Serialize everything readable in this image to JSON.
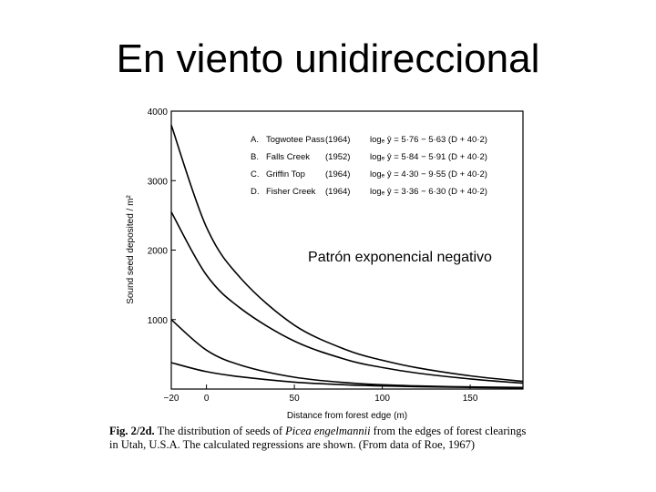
{
  "slide": {
    "title": "En viento unidireccional",
    "callout": "Patrón exponencial negativo"
  },
  "caption": {
    "figure_label": "Fig. 2/2d.",
    "text_before": " The distribution of seeds of ",
    "species": "Picea engelmannii",
    "text_after": " from the edges of forest clearings in Utah, U.S.A. The calculated regressions are shown. (From data of Roe, 1967)"
  },
  "chart_data": {
    "type": "line",
    "xlabel": "Distance from forest edge  (m)",
    "ylabel": "Sound seed deposited / m²",
    "xlim": [
      -20,
      180
    ],
    "ylim": [
      0,
      4000
    ],
    "x_ticks": [
      -20,
      0,
      50,
      100,
      150
    ],
    "x_tick_labels": [
      "−20",
      "0",
      "50",
      "100",
      "150"
    ],
    "y_ticks": [
      1000,
      2000,
      3000,
      4000
    ],
    "y_tick_labels": [
      "1000",
      "2000",
      "3000",
      "4000"
    ],
    "grid": false,
    "legend_position": "top-right",
    "series": [
      {
        "letter": "A.",
        "name": "Togwotee Pass",
        "year": "(1964)",
        "equation": "logₑ ŷ = 5·76 − 5·63 (D + 40·2)",
        "a": 5.76,
        "b": 5.63
      },
      {
        "letter": "B.",
        "name": "Falls Creek",
        "year": "(1952)",
        "equation": "logₑ ŷ = 5·84 − 5·91 (D + 40·2)",
        "a": 5.84,
        "b": 5.91
      },
      {
        "letter": "C.",
        "name": "Griffin Top",
        "year": "(1964)",
        "equation": "logₑ ŷ = 4·30 − 9·55 (D + 40·2)",
        "a": 4.3,
        "b": 9.55
      },
      {
        "letter": "D.",
        "name": "Fisher Creek",
        "year": "(1964)",
        "equation": "logₑ ŷ = 3·36 − 6·30 (D + 40·2)",
        "a": 3.36,
        "b": 6.3
      }
    ],
    "curve_values": {
      "x": [
        -20,
        0,
        20,
        50,
        80,
        100,
        120,
        150,
        180
      ],
      "A": [
        3800,
        2330,
        1580,
        920,
        560,
        415,
        305,
        190,
        110
      ],
      "B": [
        2550,
        1640,
        1150,
        690,
        420,
        310,
        230,
        145,
        85
      ],
      "C": [
        1000,
        560,
        340,
        170,
        90,
        62,
        45,
        30,
        22
      ],
      "D": [
        380,
        250,
        175,
        100,
        60,
        45,
        34,
        23,
        16
      ]
    }
  }
}
